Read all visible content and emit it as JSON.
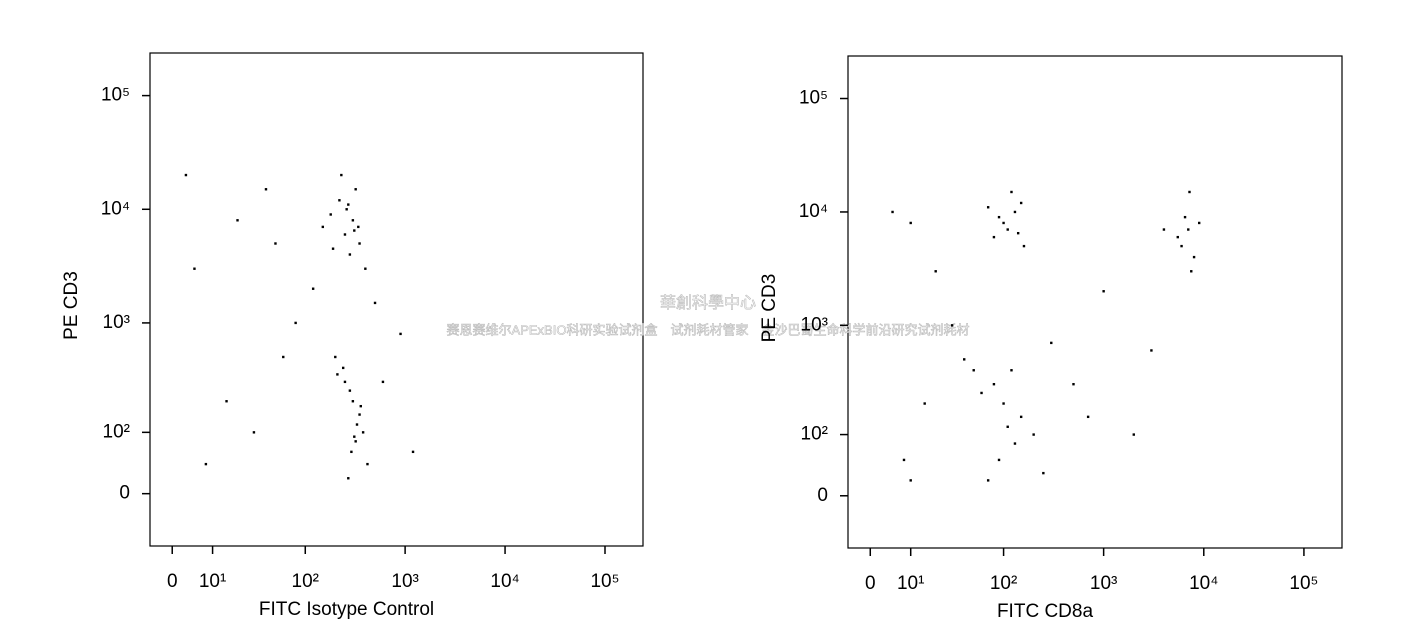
{
  "chart_data": [
    {
      "type": "scatter",
      "xlabel": "FITC Isotype Control",
      "ylabel": "PE CD3",
      "color": "#000000",
      "scale": "biexponential",
      "x": [
        250,
        300,
        180,
        350,
        220,
        280,
        150,
        320,
        260,
        400,
        230,
        310,
        190,
        270,
        340,
        300,
        250,
        350,
        200,
        380,
        280,
        320,
        240,
        330,
        290,
        360,
        210,
        420,
        270,
        310,
        5,
        20,
        60,
        40,
        15,
        80,
        8,
        120,
        600,
        900,
        1200,
        500,
        30,
        50,
        3
      ],
      "values": [
        6000,
        8000,
        9000,
        5000,
        12000,
        4000,
        7000,
        15000,
        10000,
        3000,
        20000,
        6500,
        4500,
        11000,
        7000,
        200,
        300,
        150,
        500,
        100,
        250,
        80,
        400,
        120,
        60,
        180,
        350,
        40,
        20,
        90,
        3000,
        8000,
        500,
        15000,
        200,
        1000,
        40,
        2000,
        300,
        800,
        60,
        1500,
        100,
        5000,
        20000
      ],
      "xlim": [
        -5,
        240000
      ],
      "ylim": [
        -80,
        237000
      ],
      "xticks": [
        0,
        {
          "value": 10,
          "label": "10¹"
        },
        {
          "value": 100,
          "label": "10²"
        },
        {
          "value": 1000,
          "label": "10³"
        },
        {
          "value": 10000,
          "label": "10⁴"
        },
        {
          "value": 100000,
          "label": "10⁵"
        }
      ],
      "yticks": [
        0,
        {
          "value": 100,
          "label": "10²"
        },
        {
          "value": 1000,
          "label": "10³"
        },
        {
          "value": 10000,
          "label": "10⁴"
        },
        {
          "value": 100000,
          "label": "10⁵"
        }
      ]
    },
    {
      "type": "scatter",
      "xlabel": "FITC CD8a",
      "ylabel": "PE CD3",
      "color": "#000000",
      "scale": "biexponential",
      "x": [
        100,
        130,
        80,
        150,
        110,
        90,
        160,
        120,
        70,
        140,
        6000,
        7000,
        8000,
        6500,
        7500,
        5500,
        9000,
        7200,
        100,
        80,
        150,
        120,
        60,
        200,
        90,
        110,
        70,
        130,
        5,
        20,
        40,
        15,
        300,
        500,
        1000,
        3000,
        2000,
        8,
        30,
        10,
        250,
        50,
        700,
        4000,
        10
      ],
      "values": [
        8000,
        10000,
        6000,
        12000,
        7000,
        9000,
        5000,
        15000,
        11000,
        6500,
        5000,
        7000,
        4000,
        9000,
        3000,
        6000,
        8000,
        15000,
        200,
        300,
        150,
        400,
        250,
        100,
        50,
        120,
        20,
        80,
        10000,
        3000,
        500,
        200,
        700,
        300,
        2000,
        600,
        100,
        50,
        1000,
        8000,
        30,
        400,
        150,
        7000,
        20
      ],
      "xlim": [
        -5,
        240000
      ],
      "ylim": [
        -80,
        237000
      ],
      "xticks": [
        0,
        {
          "value": 10,
          "label": "10¹"
        },
        {
          "value": 100,
          "label": "10²"
        },
        {
          "value": 1000,
          "label": "10³"
        },
        {
          "value": 10000,
          "label": "10⁴"
        },
        {
          "value": 100000,
          "label": "10⁵"
        }
      ],
      "yticks": [
        0,
        {
          "value": 100,
          "label": "10²"
        },
        {
          "value": 1000,
          "label": "10³"
        },
        {
          "value": 10000,
          "label": "10⁴"
        },
        {
          "value": 100000,
          "label": "10⁵"
        }
      ]
    }
  ],
  "watermark": {
    "title": "華創科學中心",
    "line": "赛恩赛维尔APExBIO科研实验试剂盒　试剂耗材管家　金沙巴蜀生命科学前沿研究试剂耗材"
  }
}
